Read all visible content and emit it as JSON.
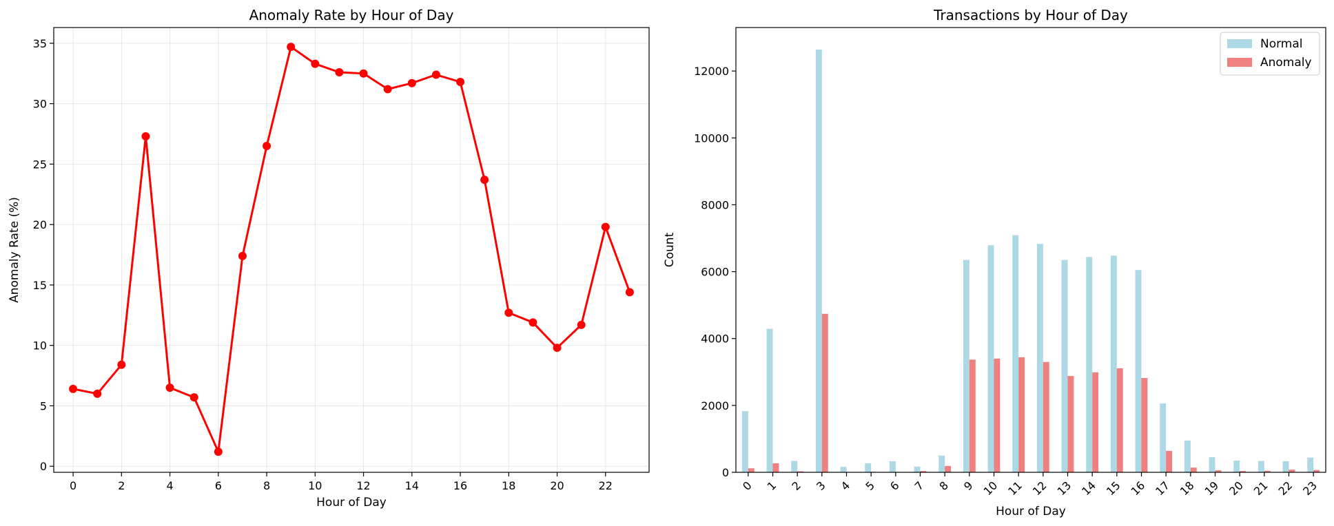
{
  "chart_data": [
    {
      "type": "line",
      "title": "Anomaly Rate by Hour of Day",
      "xlabel": "Hour of Day",
      "ylabel": "Anomaly Rate (%)",
      "xlim": [
        -0.8,
        23.8
      ],
      "ylim": [
        -0.5,
        36.3
      ],
      "xticks": [
        0,
        2,
        4,
        6,
        8,
        10,
        12,
        14,
        16,
        18,
        20,
        22
      ],
      "yticks": [
        0,
        5,
        10,
        15,
        20,
        25,
        30,
        35
      ],
      "grid": true,
      "color": "#ff0000",
      "x": [
        0,
        1,
        2,
        3,
        4,
        5,
        6,
        7,
        8,
        9,
        10,
        11,
        12,
        13,
        14,
        15,
        16,
        17,
        18,
        19,
        20,
        21,
        22,
        23
      ],
      "values": [
        6.4,
        6.0,
        8.4,
        27.3,
        6.5,
        5.7,
        1.2,
        17.4,
        26.5,
        34.7,
        33.3,
        32.6,
        32.5,
        31.2,
        31.7,
        32.4,
        31.8,
        23.7,
        12.7,
        11.9,
        9.8,
        11.7,
        19.8,
        14.4
      ]
    },
    {
      "type": "bar",
      "title": "Transactions by Hour of Day",
      "xlabel": "Hour of Day",
      "ylabel": "Count",
      "ylim": [
        0,
        13300
      ],
      "yticks": [
        0,
        2000,
        4000,
        6000,
        8000,
        10000,
        12000
      ],
      "grid": false,
      "legend_position": "top-right",
      "categories": [
        "0",
        "1",
        "2",
        "3",
        "4",
        "5",
        "6",
        "7",
        "8",
        "9",
        "10",
        "11",
        "12",
        "13",
        "14",
        "15",
        "16",
        "17",
        "18",
        "19",
        "20",
        "21",
        "22",
        "23"
      ],
      "series": [
        {
          "name": "Normal",
          "color": "#add8e6",
          "values": [
            1830,
            4290,
            340,
            12640,
            160,
            270,
            330,
            170,
            500,
            6350,
            6790,
            7090,
            6830,
            6350,
            6440,
            6480,
            6050,
            2060,
            950,
            450,
            350,
            340,
            330,
            440
          ]
        },
        {
          "name": "Anomaly",
          "color": "#f08080",
          "values": [
            120,
            270,
            30,
            4740,
            10,
            15,
            5,
            40,
            190,
            3370,
            3400,
            3440,
            3300,
            2880,
            2990,
            3110,
            2820,
            640,
            140,
            60,
            40,
            45,
            80,
            70
          ]
        }
      ]
    }
  ]
}
